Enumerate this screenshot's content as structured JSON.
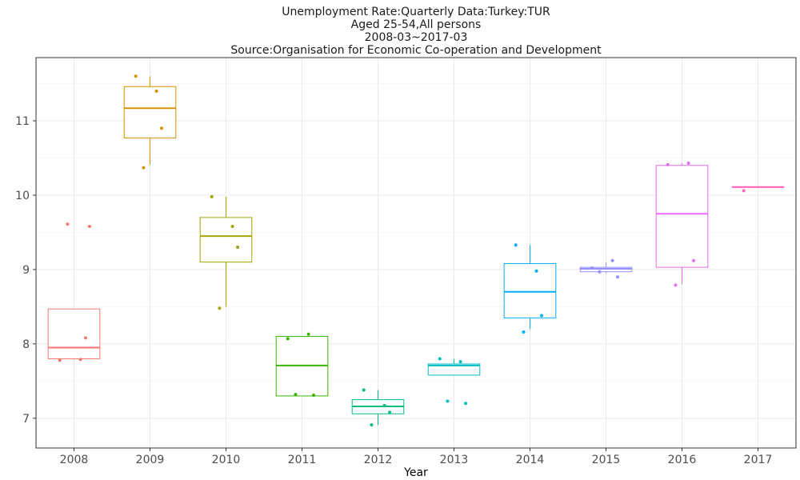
{
  "chart_data": {
    "type": "boxplot",
    "title_lines": [
      "Unemployment Rate:Quarterly Data:Turkey:TUR",
      "Aged 25-54,All persons",
      "2008-03~2017-03",
      "Source:Organisation for Economic Co-operation and Development"
    ],
    "xlabel": "Year",
    "ylabel": "",
    "ylim": [
      6.6,
      11.85
    ],
    "y_ticks": [
      7,
      8,
      9,
      10,
      11
    ],
    "grid": true,
    "legend": "none",
    "categories": [
      "2008",
      "2009",
      "2010",
      "2011",
      "2012",
      "2013",
      "2014",
      "2015",
      "2016",
      "2017"
    ],
    "series": [
      {
        "category": "2008",
        "color": "#F8766D",
        "q1": 7.8,
        "median": 7.95,
        "q3": 8.47,
        "whisker_low": 7.79,
        "whisker_high": 8.47,
        "points": [
          7.78,
          7.79,
          8.08,
          9.61,
          9.58
        ]
      },
      {
        "category": "2009",
        "color": "#D89000",
        "q1": 10.77,
        "median": 11.17,
        "q3": 11.46,
        "whisker_low": 10.41,
        "whisker_high": 11.6,
        "points": [
          11.6,
          11.4,
          10.9,
          10.37
        ]
      },
      {
        "category": "2010",
        "color": "#A3A500",
        "q1": 9.1,
        "median": 9.45,
        "q3": 9.7,
        "whisker_low": 8.5,
        "whisker_high": 9.98,
        "points": [
          9.98,
          9.58,
          9.3,
          8.48
        ]
      },
      {
        "category": "2011",
        "color": "#39B600",
        "q1": 7.3,
        "median": 7.71,
        "q3": 8.1,
        "whisker_low": 7.3,
        "whisker_high": 8.1,
        "points": [
          8.07,
          8.13,
          7.31,
          7.32
        ]
      },
      {
        "category": "2012",
        "color": "#00BF7D",
        "q1": 7.06,
        "median": 7.16,
        "q3": 7.25,
        "whisker_low": 6.91,
        "whisker_high": 7.38,
        "points": [
          7.38,
          7.17,
          7.08,
          6.91
        ]
      },
      {
        "category": "2013",
        "color": "#00BFC4",
        "q1": 7.58,
        "median": 7.71,
        "q3": 7.73,
        "whisker_low": 7.58,
        "whisker_high": 7.8,
        "points": [
          7.8,
          7.76,
          7.2,
          7.23
        ]
      },
      {
        "category": "2014",
        "color": "#00B0F6",
        "q1": 8.35,
        "median": 8.7,
        "q3": 9.08,
        "whisker_low": 8.2,
        "whisker_high": 9.33,
        "points": [
          9.33,
          8.98,
          8.38,
          8.16
        ]
      },
      {
        "category": "2015",
        "color": "#9590FF",
        "q1": 8.97,
        "median": 9.01,
        "q3": 9.03,
        "whisker_low": 8.95,
        "whisker_high": 9.1,
        "points": [
          9.02,
          9.12,
          8.9,
          8.97
        ]
      },
      {
        "category": "2016",
        "color": "#E76BF3",
        "q1": 9.03,
        "median": 9.75,
        "q3": 10.4,
        "whisker_low": 8.8,
        "whisker_high": 10.43,
        "points": [
          10.41,
          10.43,
          9.12,
          8.79
        ]
      },
      {
        "category": "2017",
        "color": "#FF62BC",
        "q1": 10.11,
        "median": 10.11,
        "q3": 10.11,
        "whisker_low": 10.11,
        "whisker_high": 10.11,
        "points": [
          10.06
        ]
      }
    ]
  }
}
